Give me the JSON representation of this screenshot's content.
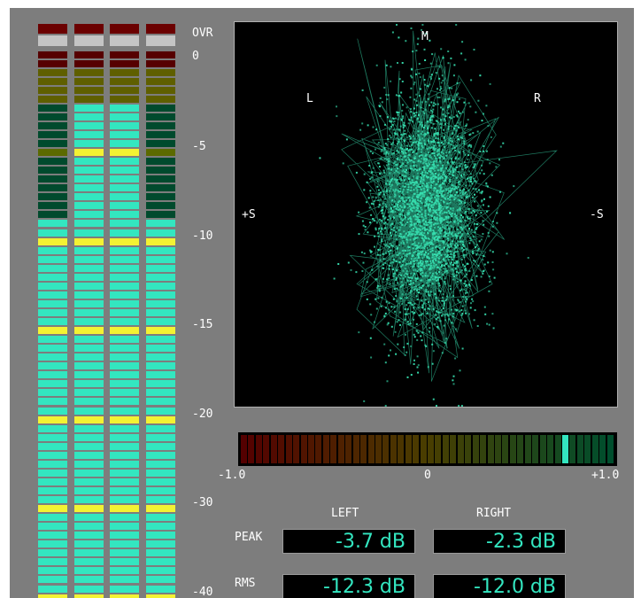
{
  "level_meter": {
    "scale_labels": [
      "OVR",
      "0",
      "-5",
      "-10",
      "-15",
      "-20",
      "-30",
      "-40"
    ],
    "channel_levels_segment_index": [
      43,
      56,
      56,
      43
    ],
    "peak_hold_segment_index": [
      null,
      49,
      51,
      null
    ],
    "colors": {
      "ovr": "#6b0000",
      "red": "#560000",
      "yellow_dim": "#5f5f00",
      "green_dim": "#004a2d",
      "lit": "#33e6c0",
      "marker": "#f3f233",
      "divider": "#c4c4c4"
    }
  },
  "goniometer": {
    "labels": {
      "mid": "M",
      "left": "L",
      "right": "R",
      "plus_side": "+S",
      "minus_side": "-S"
    },
    "trace_color": "#37e0b0"
  },
  "correlation": {
    "value": 0.76,
    "ticks": [
      "-1.0",
      "0",
      "+1.0"
    ]
  },
  "readouts": {
    "headers": {
      "left": "LEFT",
      "right": "RIGHT"
    },
    "peak": {
      "label": "PEAK",
      "left": "-3.7 dB",
      "right": "-2.3 dB"
    },
    "rms": {
      "label": "RMS",
      "left": "-12.3 dB",
      "right": "-12.0 dB"
    }
  }
}
